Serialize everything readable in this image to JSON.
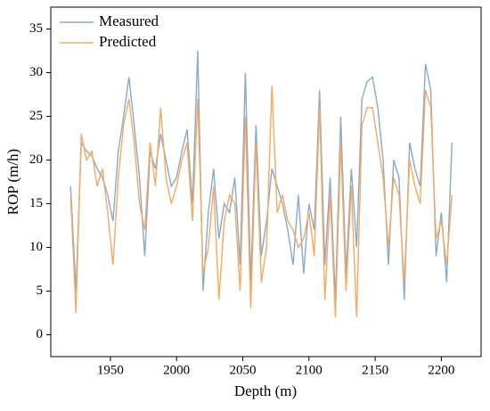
{
  "chart_data": {
    "type": "line",
    "xlabel": "Depth (m)",
    "ylabel": "ROP (m/h)",
    "x": [
      1920,
      1924,
      1928,
      1932,
      1936,
      1940,
      1944,
      1948,
      1952,
      1956,
      1960,
      1964,
      1968,
      1972,
      1976,
      1980,
      1984,
      1988,
      1992,
      1996,
      2000,
      2004,
      2008,
      2012,
      2016,
      2020,
      2024,
      2028,
      2032,
      2036,
      2040,
      2044,
      2048,
      2052,
      2056,
      2060,
      2064,
      2068,
      2072,
      2076,
      2080,
      2084,
      2088,
      2092,
      2096,
      2100,
      2104,
      2108,
      2112,
      2116,
      2120,
      2124,
      2128,
      2132,
      2136,
      2140,
      2144,
      2148,
      2152,
      2156,
      2160,
      2164,
      2168,
      2172,
      2176,
      2180,
      2184,
      2188,
      2192,
      2196,
      2200,
      2204,
      2208
    ],
    "series": [
      {
        "name": "Measured",
        "color": "#86a9cf",
        "values": [
          17,
          5,
          22,
          21,
          20.5,
          19,
          18,
          16,
          13,
          21,
          25,
          29.5,
          24,
          18,
          9,
          21,
          19,
          23,
          20,
          17,
          18,
          21,
          23.5,
          15,
          32.5,
          5,
          14,
          19,
          11,
          15,
          14,
          18,
          8,
          30,
          6,
          24,
          9,
          13,
          19,
          17,
          15,
          12,
          8,
          16,
          7,
          15,
          12,
          28,
          8,
          18,
          4,
          25,
          7,
          19,
          10,
          27,
          29,
          29.5,
          26,
          20,
          8,
          20,
          18,
          4,
          22,
          19,
          17,
          31,
          28,
          9,
          14,
          6,
          22
        ]
      },
      {
        "name": "Predicted",
        "color": "#f6a95e",
        "values": [
          16,
          2.5,
          23,
          20,
          21,
          17,
          19,
          14,
          8,
          18,
          24,
          27,
          22,
          15,
          12,
          22,
          17,
          26,
          18,
          15,
          17,
          20,
          22,
          13,
          27,
          7,
          10,
          17,
          4,
          13,
          16,
          15,
          5,
          25,
          3,
          22,
          6,
          10,
          28.5,
          14,
          16,
          13,
          12,
          10,
          11,
          14,
          9,
          26,
          4,
          16,
          2,
          22,
          5,
          17,
          2,
          24,
          26,
          26,
          22,
          18,
          10,
          18,
          16,
          6,
          20,
          17,
          15,
          28,
          26,
          11,
          13,
          8,
          16
        ]
      }
    ],
    "xlim": [
      1905,
      2230
    ],
    "xticks": [
      1950,
      2000,
      2050,
      2100,
      2150,
      2200
    ],
    "ylim": [
      -2.5,
      37.5
    ],
    "yticks": [
      0,
      5,
      10,
      15,
      20,
      25,
      30,
      35
    ],
    "grid": false,
    "legend": "upper left"
  }
}
